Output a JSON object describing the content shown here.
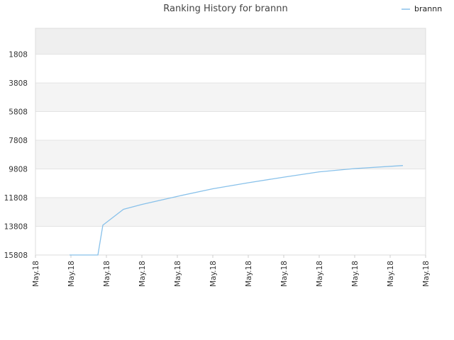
{
  "chart_data": {
    "type": "line",
    "title": "Ranking History for brannn",
    "xlabel": "",
    "ylabel": "",
    "y_inverted": true,
    "ylim": [
      1,
      15808
    ],
    "y_ticks": [
      1808,
      3808,
      5808,
      7808,
      9808,
      11808,
      13808,
      15808
    ],
    "y_tick_labels": [
      "1808",
      "3808",
      "5808",
      "7808",
      "9808",
      "11808",
      "13808",
      "15808"
    ],
    "x_tick_labels": [
      "May.18",
      "May.18",
      "May.18",
      "May.18",
      "May.18",
      "May.18",
      "May.18",
      "May.18",
      "May.18",
      "May.18",
      "May.18",
      "May.18"
    ],
    "grid": true,
    "legend": {
      "position": "top-right",
      "entries": [
        "brannn"
      ]
    },
    "series": [
      {
        "name": "brannn",
        "color": "#88c1ea",
        "x": [
          0.96,
          1.76,
          1.9,
          2.48,
          3.0,
          4.0,
          5.0,
          6.0,
          7.0,
          8.0,
          9.0,
          9.0,
          10.36
        ],
        "y": [
          15808,
          15808,
          13730,
          12620,
          12280,
          11720,
          11190,
          10770,
          10380,
          10010,
          9780,
          9780,
          9570
        ]
      }
    ]
  }
}
